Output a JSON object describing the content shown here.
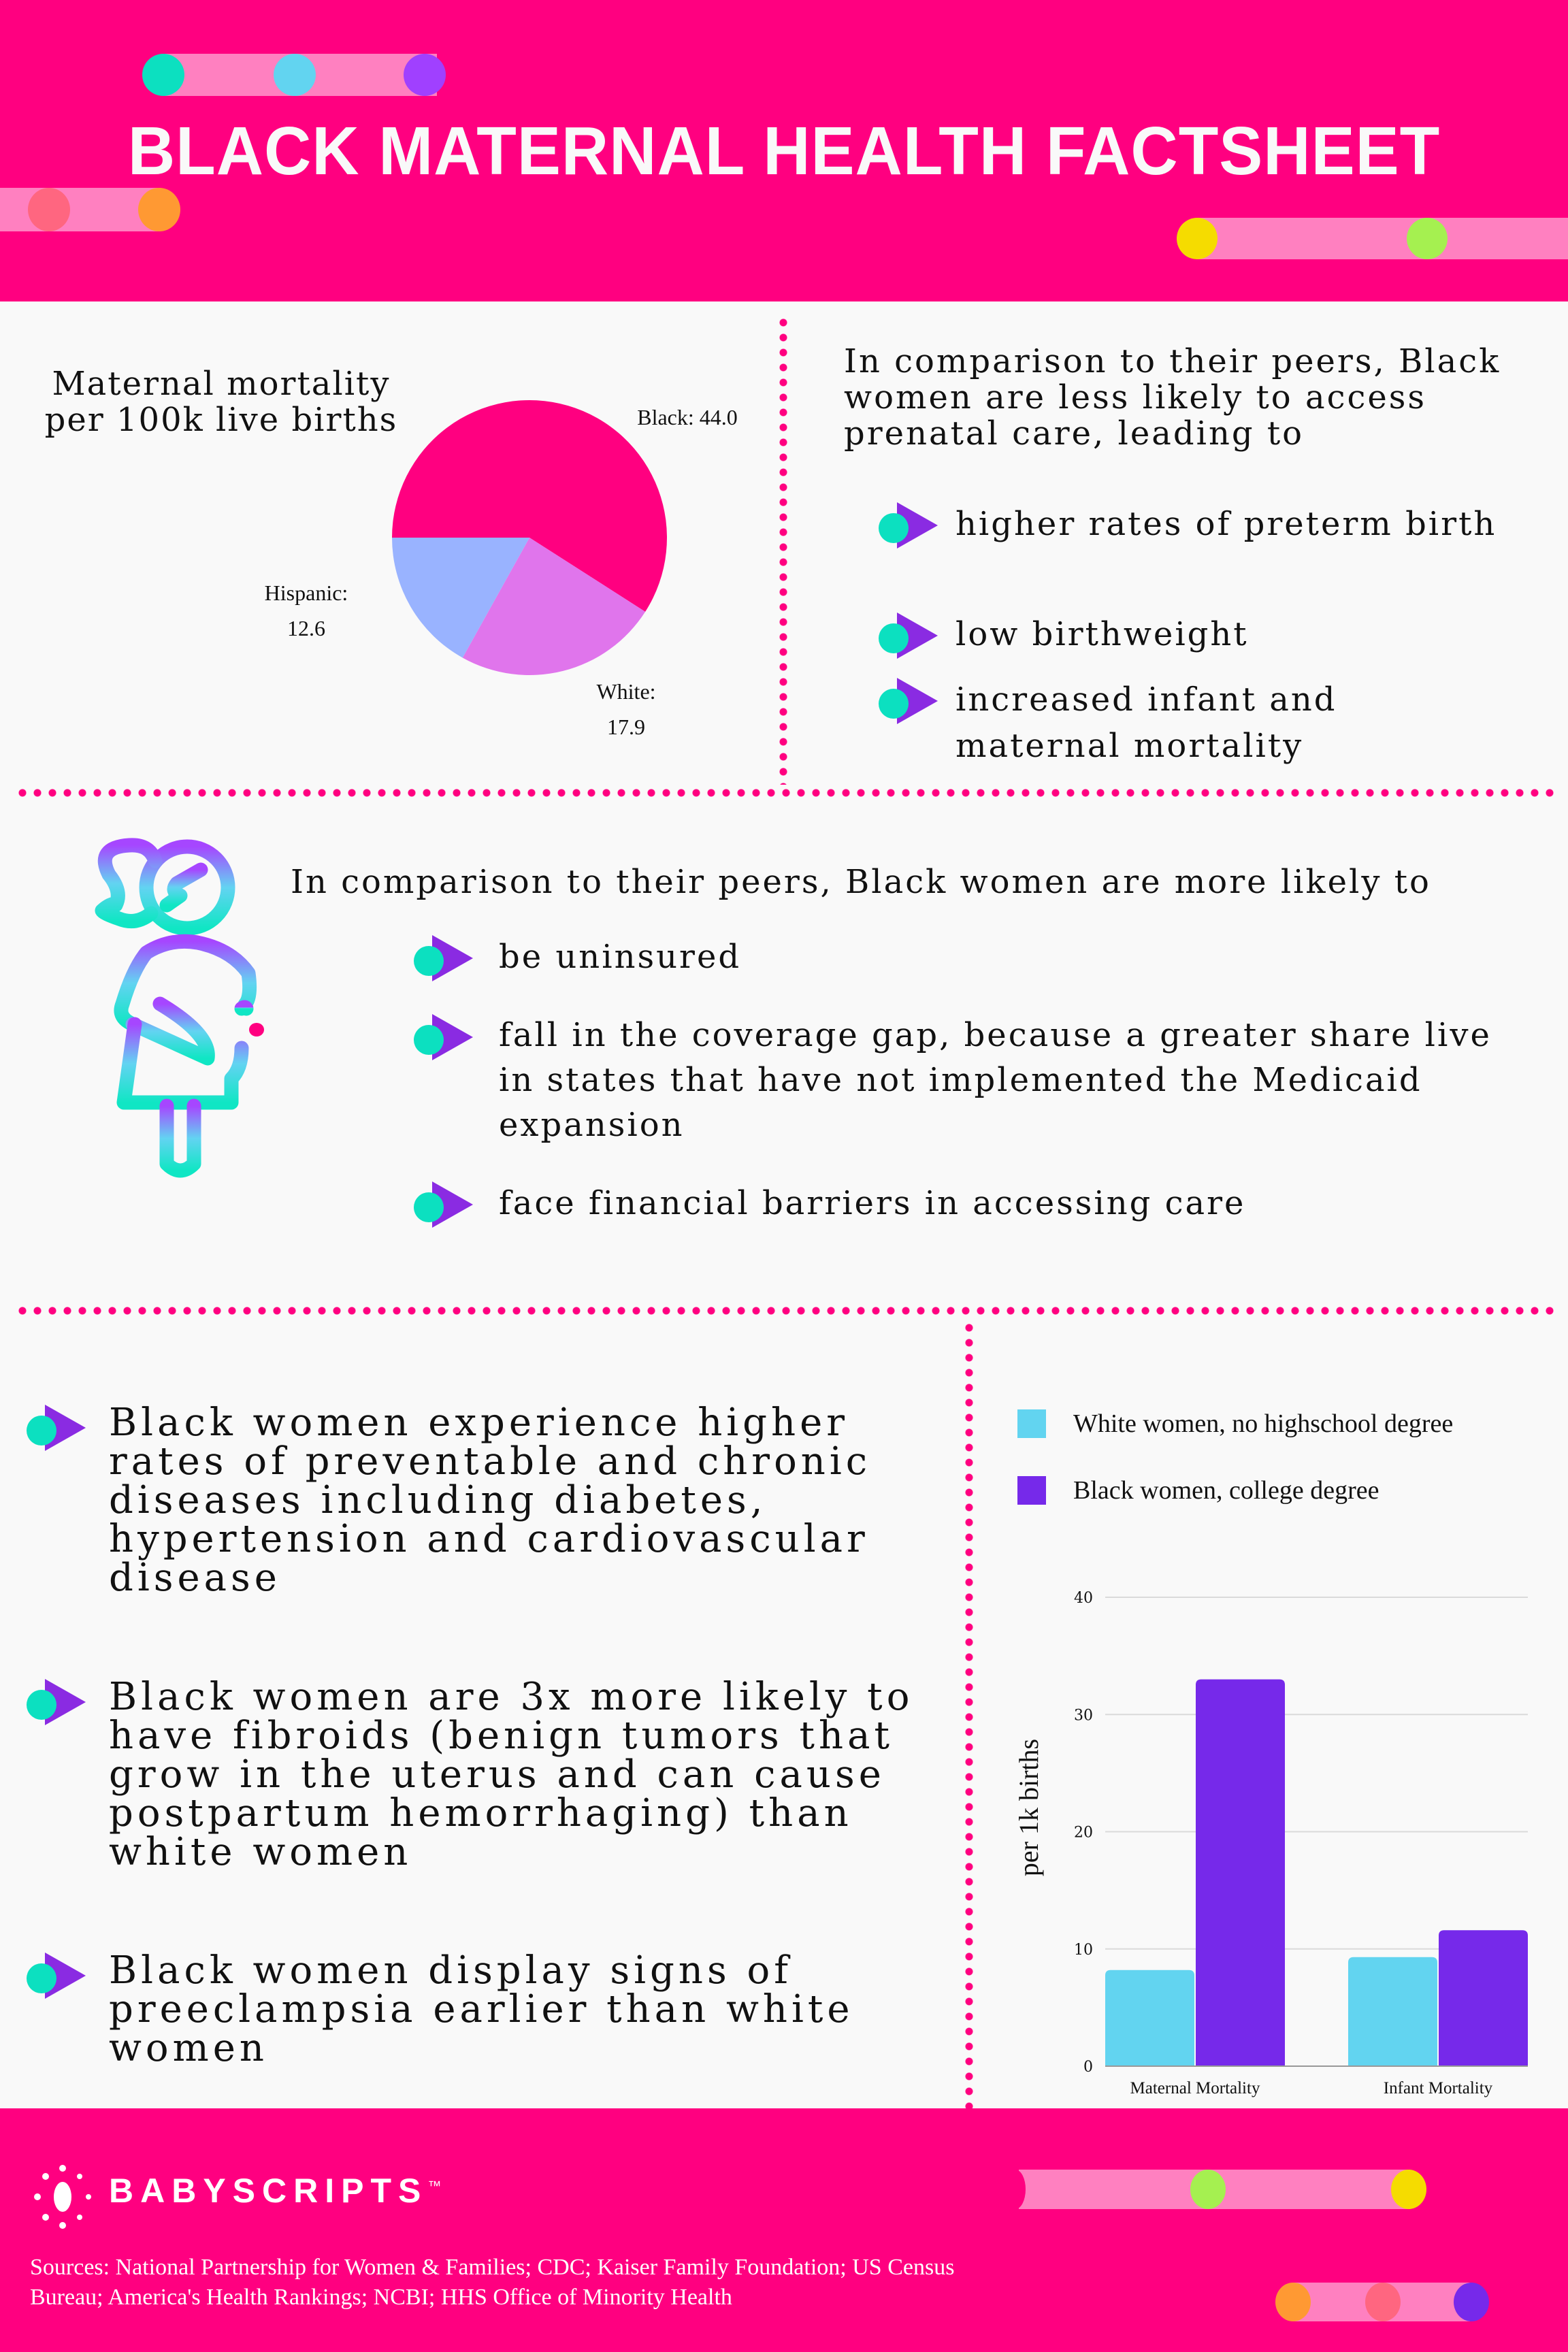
{
  "header": {
    "title": "BLACK MATERNAL HEALTH FACTSHEET"
  },
  "colors": {
    "brand_pink": "#FF0080",
    "pill_pink": "#FF80C0",
    "teal": "#0CE0C0",
    "sky": "#62D4F0",
    "purple": "#A040FF",
    "coral": "#FF6680",
    "orange": "#FF9933",
    "yellow": "#F5DC00",
    "green": "#A5F050",
    "bar_purple": "#7629EA"
  },
  "section1": {
    "intro": "In comparison to their peers, Black women are less likely to access prenatal care, leading to",
    "bullets": [
      "higher rates of preterm birth",
      "low birthweight",
      "increased infant and maternal mortality"
    ]
  },
  "section2": {
    "intro": "In comparison to their peers, Black women are more likely to",
    "bullets": [
      "be uninsured",
      "fall in the coverage gap, because a greater share live in states that have not implemented the Medicaid expansion",
      "face financial barriers in accessing care"
    ]
  },
  "section3": {
    "bullets": [
      "Black women experience higher rates of preventable and chronic diseases including diabetes, hypertension and cardiovascular disease",
      "Black women are 3x more likely to have fibroids (benign tumors that grow in the uterus and can cause postpartum hemorrhaging) than white women",
      "Black women display signs of preeclampsia earlier than white women"
    ]
  },
  "chart_data": [
    {
      "type": "pie",
      "title": "Maternal mortality per 100k live births",
      "slices": [
        {
          "label": "Black:",
          "value": 44.0,
          "value_label": "44.0",
          "color": "#FF0080"
        },
        {
          "label": "White:",
          "value": 17.9,
          "value_label": "17.9",
          "color": "#E075EC"
        },
        {
          "label": "Hispanic:",
          "value": 12.6,
          "value_label": "12.6",
          "color": "#99B3FF"
        }
      ]
    },
    {
      "type": "bar",
      "categories": [
        "Maternal Mortality",
        "Infant Mortality"
      ],
      "series": [
        {
          "name": "White women, no highschool degree",
          "values": [
            8.2,
            9.3
          ],
          "color": "#62D4F0"
        },
        {
          "name": "Black women, college degree",
          "values": [
            33.0,
            11.6
          ],
          "color": "#7629EA"
        }
      ],
      "ylabel": "per 1k births",
      "ylim": [
        0,
        40
      ],
      "yticks": [
        "0",
        "10",
        "20",
        "30",
        "40"
      ],
      "grid": true,
      "legend": "top"
    }
  ],
  "footer": {
    "logo_text": "BABYSCRIPTS",
    "trademark": "™",
    "sources": "Sources: National Partnership for Women & Families; CDC; Kaiser Family Foundation; US Census Bureau; America's Health Rankings; NCBI; HHS Office of Minority Health"
  }
}
